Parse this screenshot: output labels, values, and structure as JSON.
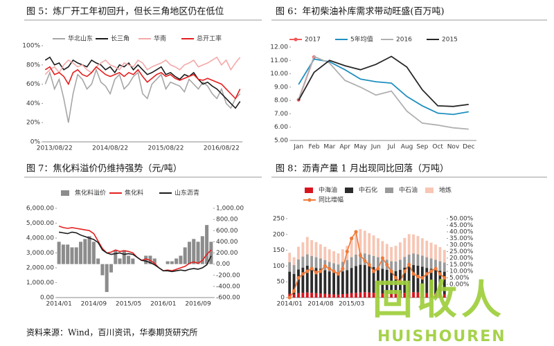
{
  "chart_data": [
    {
      "type": "line",
      "title": "图 5：炼厂开工年初回升，但长三角地区仍在低位",
      "categories": [
        null,
        null,
        "2013/08/22",
        null,
        null,
        null,
        null,
        null,
        null,
        null,
        null,
        null,
        null,
        null,
        "2014/08/22",
        null,
        null,
        null,
        null,
        null,
        null,
        null,
        null,
        null,
        null,
        null,
        "2015/08/22",
        null,
        null,
        null,
        null,
        null,
        null,
        null,
        null,
        null,
        null,
        null,
        "2016/08/22",
        null,
        null,
        null,
        null
      ],
      "ylim": [
        0,
        100
      ],
      "yticks": [
        {
          "value": 0,
          "label": "0%"
        },
        {
          "value": 20,
          "label": "20%"
        },
        {
          "value": 40,
          "label": "40%"
        },
        {
          "value": 60,
          "label": "60%"
        },
        {
          "value": 80,
          "label": "80%"
        },
        {
          "value": 100,
          "label": "100%"
        }
      ],
      "series": [
        {
          "name": "华北山东",
          "color": "#a6a6a6",
          "type": "line",
          "values": [
            60,
            72,
            55,
            65,
            45,
            20,
            50,
            70,
            65,
            55,
            60,
            75,
            62,
            58,
            50,
            65,
            70,
            55,
            60,
            68,
            72,
            50,
            45,
            60,
            65,
            70,
            55,
            62,
            60,
            58,
            52,
            65,
            60,
            55,
            62,
            58,
            50,
            45,
            55,
            40,
            35,
            45,
            50
          ]
        },
        {
          "name": "长三角",
          "color": "#1a1a1a",
          "type": "line",
          "values": [
            85,
            88,
            80,
            82,
            75,
            78,
            85,
            82,
            80,
            78,
            85,
            82,
            80,
            75,
            78,
            72,
            80,
            78,
            82,
            75,
            80,
            75,
            70,
            72,
            75,
            78,
            70,
            72,
            68,
            65,
            70,
            68,
            72,
            65,
            60,
            62,
            58,
            55,
            50,
            45,
            40,
            35,
            42
          ]
        },
        {
          "name": "华南",
          "color": "#f4a9a8",
          "type": "line",
          "values": [
            70,
            75,
            78,
            72,
            80,
            85,
            82,
            78,
            80,
            75,
            72,
            78,
            82,
            85,
            80,
            78,
            75,
            82,
            80,
            78,
            85,
            82,
            75,
            78,
            80,
            82,
            85,
            80,
            78,
            75,
            80,
            82,
            85,
            78,
            80,
            82,
            85,
            88,
            80,
            85,
            75,
            82,
            88
          ]
        },
        {
          "name": "总开工率",
          "color": "#e41e1e",
          "type": "line",
          "values": [
            75,
            78,
            70,
            72,
            68,
            60,
            72,
            75,
            70,
            68,
            72,
            78,
            74,
            70,
            68,
            70,
            72,
            68,
            72,
            70,
            75,
            68,
            62,
            66,
            70,
            72,
            68,
            70,
            66,
            64,
            66,
            68,
            70,
            65,
            64,
            66,
            64,
            62,
            60,
            55,
            50,
            45,
            55
          ]
        }
      ]
    },
    {
      "type": "line",
      "title": "图 6：年初柴油补库需求带动旺盛(百万吨)",
      "categories": [
        "Jan",
        "Feb",
        "Mar",
        "Apr",
        "May",
        "Jun",
        "Jul",
        "Aug",
        "Sep",
        "Oct",
        "Nov",
        "Dec"
      ],
      "ylim": [
        5,
        12
      ],
      "yticks": [
        {
          "value": 5,
          "label": "5.00"
        },
        {
          "value": 6,
          "label": "6.00"
        },
        {
          "value": 7,
          "label": "7.00"
        },
        {
          "value": 8,
          "label": "8.00"
        },
        {
          "value": 9,
          "label": "9.00"
        },
        {
          "value": 10,
          "label": "10.00"
        },
        {
          "value": 11,
          "label": "11.00"
        },
        {
          "value": 12,
          "label": "12.00"
        }
      ],
      "series": [
        {
          "name": "2017",
          "color": "#f05a5a",
          "type": "line",
          "marker": true,
          "values": [
            8.05,
            11.25,
            null,
            null,
            null,
            null,
            null,
            null,
            null,
            null,
            null,
            null
          ]
        },
        {
          "name": "5年均值",
          "color": "#1f8fc0",
          "type": "line",
          "values": [
            9.2,
            11.1,
            10.9,
            10.3,
            9.6,
            9.4,
            9.3,
            8.3,
            7.6,
            7.05,
            6.95,
            7.15
          ]
        },
        {
          "name": "2016",
          "color": "#b0b0b0",
          "type": "line",
          "values": [
            8.1,
            11.3,
            10.8,
            9.5,
            9.0,
            8.4,
            8.7,
            7.2,
            6.3,
            6.15,
            5.95,
            5.85
          ]
        },
        {
          "name": "2015",
          "color": "#262626",
          "type": "line",
          "values": [
            8.0,
            10.1,
            11.0,
            10.6,
            10.3,
            10.7,
            11.3,
            10.5,
            8.8,
            7.6,
            7.55,
            7.7
          ]
        }
      ]
    },
    {
      "type": "combo",
      "title": "图 7：焦化料溢价仍维持强势（元/吨）",
      "categories": [
        "2014/01",
        null,
        null,
        null,
        null,
        null,
        null,
        null,
        "2014/09",
        null,
        null,
        null,
        null,
        null,
        null,
        null,
        "2015/05",
        null,
        null,
        null,
        null,
        null,
        null,
        null,
        "2016/01",
        null,
        null,
        null,
        null,
        null,
        null,
        null,
        "2016/09",
        null,
        null,
        null
      ],
      "ylim": [
        0,
        6000
      ],
      "yticks": [
        {
          "value": 0,
          "label": "0.00"
        },
        {
          "value": 1000,
          "label": "1,000.00"
        },
        {
          "value": 2000,
          "label": "2,000.00"
        },
        {
          "value": 3000,
          "label": "3,000.00"
        },
        {
          "value": 4000,
          "label": "4,000.00"
        },
        {
          "value": 5000,
          "label": "5,000.00"
        },
        {
          "value": 6000,
          "label": "6,000.00"
        }
      ],
      "y2lim": [
        -600,
        1000
      ],
      "y2ticks": [
        {
          "value": -600,
          "label": "-600.00"
        },
        {
          "value": -400,
          "label": "-400.00"
        },
        {
          "value": -200,
          "label": "-200.00"
        },
        {
          "value": 0,
          "label": "0.00"
        },
        {
          "value": 200,
          "label": "200.00"
        },
        {
          "value": 400,
          "label": "400.00"
        },
        {
          "value": 600,
          "label": "600.00"
        },
        {
          "value": 800,
          "label": "800.00"
        },
        {
          "value": 1000,
          "label": "1,000.00"
        }
      ],
      "series": [
        {
          "name": "焦化料溢价",
          "color": "#8c8c8c",
          "type": "bar",
          "axis": "y2",
          "values": [
            400,
            350,
            350,
            300,
            300,
            400,
            450,
            500,
            400,
            100,
            -200,
            -500,
            -150,
            250,
            100,
            250,
            150,
            100,
            0,
            0,
            150,
            150,
            100,
            0,
            0,
            50,
            50,
            100,
            150,
            300,
            400,
            450,
            400,
            500,
            700,
            400
          ]
        },
        {
          "name": "焦化料",
          "color": "#e41e1e",
          "type": "line",
          "values": [
            4800,
            4700,
            4650,
            4700,
            4650,
            4600,
            4550,
            4500,
            4300,
            3800,
            3300,
            3000,
            3050,
            3200,
            3100,
            3150,
            3100,
            3000,
            2700,
            2500,
            2600,
            2500,
            2300,
            2000,
            1800,
            1850,
            1800,
            1900,
            2000,
            2100,
            2300,
            2400,
            2300,
            2500,
            2900,
            3200
          ]
        },
        {
          "name": "山东沥青",
          "color": "#1a1a1a",
          "type": "line",
          "values": [
            4400,
            4350,
            4300,
            4400,
            4350,
            4200,
            4100,
            4000,
            3900,
            3700,
            3200,
            3000,
            2900,
            2950,
            3000,
            2900,
            2950,
            2900,
            2700,
            2500,
            2450,
            2350,
            2200,
            2000,
            1800,
            1800,
            1750,
            1800,
            1850,
            1800,
            1900,
            1950,
            1900,
            2000,
            2200,
            2800
          ]
        }
      ]
    },
    {
      "type": "combo",
      "stacked": true,
      "title": "图 8：沥青产量 1 月出现同比回落（万吨）",
      "categories": [
        "2014/01",
        null,
        null,
        null,
        null,
        null,
        null,
        "2014/08",
        null,
        null,
        null,
        null,
        null,
        null,
        "2015/03",
        null,
        null,
        null,
        null,
        null,
        null,
        null,
        null,
        null,
        null,
        null,
        null,
        null,
        null,
        null,
        null,
        null,
        null,
        null,
        null,
        null
      ],
      "ylim": [
        0,
        250
      ],
      "yticks": [
        0,
        50,
        100,
        150,
        200,
        250
      ],
      "y2lim": [
        -10,
        50
      ],
      "y2ticks": [
        {
          "value": 0,
          "label": "0.00%"
        },
        {
          "value": 5,
          "label": "5.00%"
        },
        {
          "value": 10,
          "label": "10.00%"
        },
        {
          "value": 15,
          "label": "15.00%"
        },
        {
          "value": 20,
          "label": "20.00%"
        },
        {
          "value": 25,
          "label": "25.00%"
        },
        {
          "value": 30,
          "label": "30.00%"
        },
        {
          "value": 35,
          "label": "35.00%"
        },
        {
          "value": 40,
          "label": "40.00%"
        },
        {
          "value": 45,
          "label": "45.00%"
        },
        {
          "value": 50,
          "label": "50.00%"
        }
      ],
      "series": [
        {
          "name": "中海油",
          "color": "#d7141e",
          "type": "bar",
          "values": [
            12,
            10,
            14,
            15,
            16,
            15,
            14,
            13,
            12,
            11,
            10,
            9,
            11,
            12,
            14,
            15,
            16,
            17,
            16,
            15,
            14,
            13,
            12,
            11,
            12,
            13,
            15,
            16,
            17,
            16,
            15,
            14,
            13,
            12,
            11,
            10
          ]
        },
        {
          "name": "中石化",
          "color": "#2b2b2b",
          "type": "bar",
          "values": [
            70,
            65,
            75,
            80,
            85,
            82,
            80,
            78,
            75,
            72,
            70,
            68,
            72,
            75,
            80,
            85,
            88,
            86,
            84,
            82,
            80,
            78,
            76,
            74,
            72,
            75,
            80,
            84,
            86,
            85,
            83,
            80,
            78,
            76,
            74,
            72
          ]
        },
        {
          "name": "中石油",
          "color": "#9a9a9a",
          "type": "bar",
          "values": [
            30,
            28,
            32,
            35,
            36,
            35,
            34,
            33,
            32,
            30,
            29,
            28,
            30,
            32,
            34,
            36,
            38,
            37,
            36,
            35,
            34,
            33,
            32,
            30,
            30,
            32,
            34,
            36,
            37,
            36,
            35,
            34,
            33,
            32,
            30,
            29
          ]
        },
        {
          "name": "地炼",
          "color": "#f7c6b4",
          "type": "bar",
          "values": [
            30,
            25,
            40,
            45,
            55,
            50,
            48,
            45,
            42,
            40,
            38,
            35,
            40,
            45,
            60,
            70,
            75,
            72,
            68,
            65,
            60,
            55,
            50,
            45,
            50,
            55,
            60,
            65,
            60,
            58,
            55,
            52,
            50,
            48,
            45,
            40
          ]
        },
        {
          "name": "同比增幅",
          "color": "#f07a3a",
          "type": "line",
          "axis": "y2",
          "marker": true,
          "values": [
            -10,
            -5,
            5,
            8,
            10,
            12,
            9,
            10,
            14,
            12,
            10,
            8,
            12,
            25,
            35,
            40,
            22,
            18,
            15,
            10,
            12,
            20,
            15,
            10,
            5,
            2,
            10,
            15,
            8,
            6,
            5,
            8,
            10,
            12,
            8,
            5
          ]
        }
      ]
    }
  ],
  "source": "资料来源：Wind，百川资讯，华泰期货研究所",
  "watermark": {
    "text": "回收人",
    "subtext": "HUISHOUREN"
  }
}
